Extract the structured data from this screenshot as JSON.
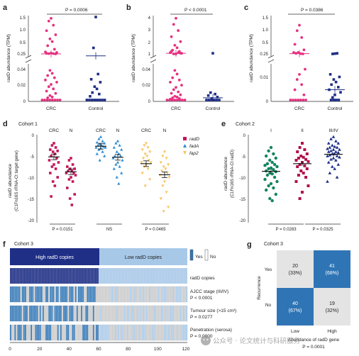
{
  "colors": {
    "crc": "#e5317f",
    "control": "#1f2f86",
    "radD": "#c2185b",
    "fadA": "#2a8dd4",
    "fap2": "#f5c463",
    "g1": "#13845c",
    "g2": "#b1114f",
    "g3": "#1f2f86",
    "high": "#2f75b5",
    "low": "#e4e4e4",
    "lightblue": "#a8c8e8"
  },
  "panels": {
    "a": {
      "letter": "a",
      "p": "P = 0.0006",
      "ylabel_gene": "radD",
      "ylabel_rest": " abundance (TPM)",
      "ticks_top": [
        "1.5",
        "1.0",
        "0.5",
        "0.25"
      ],
      "ticks_bottom": [
        "0.04",
        "0.02",
        "0"
      ],
      "groups": [
        "CRC",
        "Control"
      ]
    },
    "b": {
      "letter": "b",
      "p": "P < 0.0001",
      "ylabel_gene": "radD",
      "ylabel_rest": " abundance (TPM)",
      "ticks_top": [
        "4",
        "3",
        "2",
        "1"
      ],
      "ticks_bottom": [
        "0.04",
        "0.02",
        "0"
      ],
      "groups": [
        "CRC",
        "Control"
      ]
    },
    "c": {
      "letter": "c",
      "p": "P = 0.0386",
      "ylabel_gene": "radD",
      "ylabel_rest": " abundance (TPM)",
      "ticks_top": [
        "1.5",
        "1.0",
        "0.5",
        "0.25"
      ],
      "ticks_bottom": [
        "0.01",
        "0"
      ],
      "groups": [
        "CRC",
        "Control"
      ]
    },
    "d": {
      "letter": "d",
      "cohort": "Cohort 1",
      "groups": [
        "CRC",
        "N",
        "CRC",
        "N",
        "CRC",
        "N"
      ],
      "ylabel_gene": "radD",
      "ylabel_rest": " abundance",
      "ylabel_line2": "(C1Fn16S rRNA-Ct target gene)",
      "yticks": [
        "0",
        "-5",
        "-10",
        "-15",
        "-20"
      ],
      "pvals": [
        "P = 0.0151",
        "NS",
        "P = 0.0465"
      ],
      "legend": [
        "radD",
        "fadA",
        "fap2"
      ]
    },
    "e": {
      "letter": "e",
      "cohort": "Cohort 2",
      "groups": [
        "I",
        "II",
        "III/IV"
      ],
      "ylabel_gene": "radD",
      "ylabel_rest": " abundance",
      "ylabel_line2": "(C1Fn16S rRNA-Ct radD)",
      "yticks": [
        "0",
        "-5",
        "-10",
        "-15",
        "-20"
      ],
      "pvals": [
        "P = 0.0283",
        "P = 0.0325"
      ]
    },
    "f": {
      "letter": "f",
      "cohort": "Cohort 3",
      "high_label": "High radD copies",
      "low_label": "Low radD copies",
      "legend_yes": "Yes",
      "legend_no": "No",
      "rows": [
        {
          "label": "radD copies",
          "p": ""
        },
        {
          "label": "AJCC stage (III/IV)",
          "p": "P < 0.0001"
        },
        {
          "label": "Tumour size (>15 cm³)",
          "p": "P = 0.0277"
        },
        {
          "label": "Penetration (serosa)",
          "p": "P = 0.0800"
        }
      ],
      "xticks": [
        "0",
        "20",
        "40",
        "60",
        "80",
        "100",
        "120"
      ]
    },
    "g": {
      "letter": "g",
      "cohort": "Cohort 3",
      "ylabel": "Recurrence",
      "xlabel": "Abundance of radD gene",
      "p": "P = 0.0001",
      "row_labels": [
        "Yes",
        "No"
      ],
      "col_labels": [
        "Low",
        "High"
      ],
      "cells": [
        [
          "20",
          "(33%)",
          "41",
          "(68%)"
        ],
        [
          "40",
          "(67%)",
          "19",
          "(32%)"
        ]
      ]
    }
  },
  "watermark": "公众号 · 论文统计与科研服务",
  "chart_data": [
    {
      "type": "scatter",
      "panel": "a",
      "groups": [
        "CRC",
        "Control"
      ],
      "ylabel": "radD abundance (TPM)",
      "p_value": "P = 0.0006",
      "axis_break": true,
      "series": [
        {
          "name": "CRC",
          "values": [
            1.55,
            1.45,
            1.3,
            1.1,
            0.95,
            0.8,
            0.7,
            0.55,
            0.42,
            0.32,
            0.3,
            0.28,
            0.26,
            0.26,
            0.27,
            0.25,
            0.04,
            0.036,
            0.033,
            0.03,
            0.027,
            0.024,
            0.021,
            0.018,
            0.015,
            0.012,
            0.009,
            0.006,
            0.004,
            0.003,
            0,
            0,
            0,
            0,
            0,
            0,
            0,
            0
          ],
          "mean": 0.25
        },
        {
          "name": "Control",
          "values": [
            1.6,
            0.47,
            0.035,
            0.028,
            0.024,
            0.018,
            0.015,
            0.01,
            0.008,
            0.005,
            0,
            0,
            0,
            0,
            0,
            0,
            0,
            0
          ],
          "mean": 0.18
        }
      ]
    },
    {
      "type": "scatter",
      "panel": "b",
      "groups": [
        "CRC",
        "Control"
      ],
      "ylabel": "radD abundance (TPM)",
      "p_value": "P < 0.0001",
      "axis_break": true,
      "series": [
        {
          "name": "CRC",
          "values": [
            3.9,
            3.4,
            2.9,
            2.4,
            2.0,
            1.7,
            1.5,
            1.3,
            1.2,
            1.1,
            1.05,
            1.0,
            1.0,
            1.1,
            1.2,
            1.05,
            0.04,
            0.035,
            0.03,
            0.027,
            0.024,
            0.02,
            0.017,
            0.014,
            0.011,
            0.009,
            0.007,
            0.005,
            0.004,
            0.003,
            0.002,
            0.001,
            0,
            0,
            0,
            0,
            0,
            0,
            0,
            0
          ],
          "mean": 1.05
        },
        {
          "name": "Control",
          "values": [
            1.05,
            0.01,
            0.008,
            0.006,
            0.004,
            0.002,
            0,
            0,
            0,
            0,
            0,
            0
          ],
          "mean": 0.003
        }
      ]
    },
    {
      "type": "scatter",
      "panel": "c",
      "groups": [
        "CRC",
        "Control"
      ],
      "ylabel": "radD abundance (TPM)",
      "p_value": "P = 0.0386",
      "axis_break": true,
      "series": [
        {
          "name": "CRC",
          "values": [
            1.3,
            1.1,
            0.85,
            0.6,
            0.4,
            0.3,
            0.26,
            0.27,
            0.25,
            0.3,
            0.012,
            0.01,
            0.008,
            0.006,
            0.004,
            0.002,
            0,
            0,
            0,
            0,
            0,
            0,
            0
          ],
          "mean": 0.26
        },
        {
          "name": "Control",
          "values": [
            0.26,
            0.25,
            0.27,
            0.01,
            0.009,
            0.008,
            0.007,
            0.006,
            0.005,
            0.004,
            0.003,
            0.002,
            0.001,
            0,
            0,
            0,
            0
          ],
          "mean": 0.004
        }
      ]
    },
    {
      "type": "scatter",
      "panel": "d",
      "ylabel": "radD abundance (C1Fn16S rRNA-Ct target gene)",
      "ylim": [
        -20,
        0
      ],
      "groups": [
        "CRC",
        "N",
        "CRC",
        "N",
        "CRC",
        "N"
      ],
      "p_values": [
        "P = 0.0151",
        "NS",
        "P = 0.0465"
      ],
      "series": [
        {
          "name": "radD",
          "group": "CRC",
          "values": [
            -2.0,
            -2.5,
            -3.0,
            -3.5,
            -3.8,
            -4.0,
            -4.5,
            -5.0,
            -5.5,
            -6.0,
            -6.5,
            -7.0,
            -7.5,
            -8.0,
            -9.0,
            -10.0,
            -11.0,
            -12.0,
            -14.5
          ],
          "mean": -5.2
        },
        {
          "name": "radD",
          "group": "N",
          "values": [
            -5.5,
            -6.0,
            -7.0,
            -7.5,
            -8.0,
            -8.0,
            -8.5,
            -8.5,
            -9.0,
            -9.0,
            -9.5,
            -10.0,
            -10.5,
            -11.0,
            -12.5,
            -14.0,
            -15.0,
            -16.5
          ],
          "mean": -8.7
        },
        {
          "name": "fadA",
          "group": "CRC",
          "values": [
            -0.5,
            -1.0,
            -1.5,
            -1.8,
            -2.0,
            -2.2,
            -2.5,
            -2.5,
            -2.8,
            -3.0,
            -3.0,
            -3.2,
            -3.5,
            -4.0,
            -4.5,
            -5.0,
            -6.0
          ],
          "mean": -2.7
        },
        {
          "name": "fadA",
          "group": "N",
          "values": [
            -1.5,
            -2.0,
            -2.5,
            -3.0,
            -3.5,
            -4.0,
            -4.5,
            -5.0,
            -5.0,
            -5.5,
            -6.0,
            -6.5,
            -7.0,
            -7.5,
            -8.0,
            -9.0,
            -10.0,
            -11.5
          ],
          "mean": -5.3
        },
        {
          "name": "fap2",
          "group": "CRC",
          "values": [
            -2.0,
            -2.5,
            -3.0,
            -3.5,
            -4.0,
            -4.5,
            -5.0,
            -5.5,
            -6.0,
            -6.5,
            -6.5,
            -7.0,
            -7.5,
            -8.0,
            -9.0,
            -10.5,
            -12.0
          ],
          "mean": -6.8
        },
        {
          "name": "fap2",
          "group": "N",
          "values": [
            -4.0,
            -5.0,
            -5.5,
            -6.5,
            -7.0,
            -7.5,
            -8.0,
            -8.5,
            -9.0,
            -9.5,
            -10.0,
            -11.0,
            -12.0,
            -13.5,
            -15.0,
            -17.0,
            -18.0
          ],
          "mean": -9.4
        }
      ]
    },
    {
      "type": "scatter",
      "panel": "e",
      "ylabel": "radD abundance (C1Fn16S rRNA-Ct radD)",
      "ylim": [
        -20,
        0
      ],
      "groups": [
        "I",
        "II",
        "III/IV"
      ],
      "p_values": [
        "P = 0.0283",
        "P = 0.0325"
      ],
      "series": [
        {
          "name": "I",
          "values": [
            -3.0,
            -3.8,
            -4.5,
            -5.0,
            -5.5,
            -6.0,
            -6.5,
            -6.8,
            -7.0,
            -7.2,
            -7.5,
            -7.8,
            -8.0,
            -8.2,
            -8.5,
            -8.7,
            -9.0,
            -9.2,
            -9.5,
            -10.0,
            -10.5,
            -11.0,
            -11.5,
            -12.0,
            -12.5,
            -13.0,
            -14.0,
            -15.0,
            -15.5
          ],
          "mean": -8.6
        },
        {
          "name": "II",
          "values": [
            -2.0,
            -3.0,
            -3.5,
            -4.0,
            -4.5,
            -5.0,
            -5.3,
            -5.5,
            -5.8,
            -6.0,
            -6.3,
            -6.5,
            -7.0,
            -7.3,
            -7.5,
            -8.0,
            -8.5,
            -9.0,
            -9.5,
            -10.0,
            -11.0,
            -12.0,
            -13.5,
            -15.0
          ],
          "mean": -6.8
        },
        {
          "name": "III/IV",
          "values": [
            -0.5,
            -1.0,
            -1.5,
            -2.0,
            -2.0,
            -2.5,
            -2.8,
            -3.0,
            -3.0,
            -3.3,
            -3.5,
            -3.5,
            -3.8,
            -4.0,
            -4.0,
            -4.2,
            -4.5,
            -4.5,
            -4.8,
            -5.0,
            -5.0,
            -5.3,
            -5.5,
            -5.8,
            -6.0,
            -6.5,
            -7.0,
            -7.5,
            -8.0,
            -9.0,
            -10.0,
            -11.0
          ],
          "mean": -4.6
        }
      ]
    },
    {
      "type": "heatmap",
      "panel": "f",
      "xlim": [
        0,
        120
      ],
      "split_at": 60,
      "rows": [
        {
          "name": "radD copies",
          "high": "0-60",
          "low": "60-120"
        },
        {
          "name": "AJCC stage (III/IV)",
          "p_value": "P < 0.0001",
          "yes_fraction_high": 0.62,
          "yes_fraction_low": 0.28
        },
        {
          "name": "Tumour size (>15 cm³)",
          "p_value": "P = 0.0277",
          "yes_fraction_high": 0.55,
          "yes_fraction_low": 0.35
        },
        {
          "name": "Penetration (serosa)",
          "p_value": "P = 0.0800",
          "yes_fraction_high": 0.5,
          "yes_fraction_low": 0.38
        }
      ]
    },
    {
      "type": "table",
      "panel": "g",
      "rows": [
        "Yes",
        "No"
      ],
      "columns": [
        "Low",
        "High"
      ],
      "values": [
        [
          20,
          41
        ],
        [
          40,
          19
        ]
      ],
      "percentages": [
        [
          "33%",
          "68%"
        ],
        [
          "67%",
          "32%"
        ]
      ],
      "xlabel": "Abundance of radD gene",
      "ylabel": "Recurrence",
      "p_value": "P = 0.0001"
    }
  ]
}
